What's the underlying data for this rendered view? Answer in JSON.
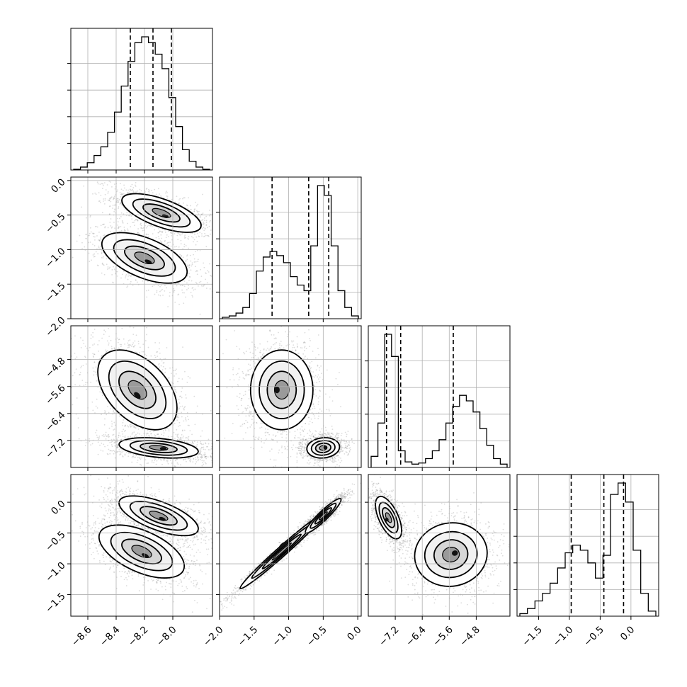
{
  "chart_data": {
    "type": "corner",
    "title": "",
    "dimensions": [
      {
        "range": [
          -8.72,
          -7.72
        ],
        "ticks": [
          -8.6,
          -8.4,
          -8.2,
          -8.0
        ],
        "tick_labels": [
          "−8.6",
          "−8.4",
          "−8.2",
          "−8.0"
        ],
        "quantiles": [
          -8.3,
          -8.14,
          -8.01
        ]
      },
      {
        "range": [
          -2.0,
          0.05
        ],
        "ticks": [
          -2.0,
          -1.5,
          -1.0,
          -0.5,
          0.0
        ],
        "tick_labels": [
          "−2.0",
          "−1.5",
          "−1.0",
          "−0.5",
          "0.0"
        ],
        "quantiles": [
          -1.24,
          -0.71,
          -0.42
        ]
      },
      {
        "range": [
          -8.0,
          -3.8
        ],
        "ticks": [
          -7.2,
          -6.4,
          -5.6,
          -4.8
        ],
        "tick_labels": [
          "−7.2",
          "−6.4",
          "−5.6",
          "−4.8"
        ],
        "quantiles": [
          -7.46,
          -7.04,
          -5.48
        ]
      },
      {
        "range": [
          -1.85,
          0.45
        ],
        "ticks": [
          -1.5,
          -1.0,
          -0.5,
          0.0
        ],
        "tick_labels": [
          "−1.5",
          "−1.0",
          "−0.5",
          "0.0"
        ],
        "quantiles": [
          -0.97,
          -0.44,
          -0.12
        ]
      }
    ],
    "histograms": [
      {
        "dim": 0,
        "counts": [
          0.5,
          2,
          5,
          10,
          16,
          26,
          40,
          58,
          75,
          88,
          92,
          88,
          80,
          70,
          50,
          30,
          14,
          6,
          2,
          0.5
        ]
      },
      {
        "dim": 1,
        "counts": [
          1,
          2,
          4,
          8,
          18,
          34,
          44,
          48,
          45,
          40,
          30,
          24,
          20,
          52,
          95,
          88,
          52,
          20,
          8,
          2
        ]
      },
      {
        "dim": 2,
        "counts": [
          10,
          40,
          120,
          100,
          15,
          5,
          3,
          4,
          8,
          15,
          25,
          40,
          55,
          65,
          60,
          50,
          35,
          20,
          8,
          3
        ]
      },
      {
        "dim": 3,
        "counts": [
          2,
          6,
          12,
          18,
          26,
          38,
          50,
          56,
          52,
          42,
          30,
          48,
          96,
          105,
          90,
          52,
          18,
          4
        ]
      }
    ],
    "pairs": [
      {
        "x": 0,
        "y": 1,
        "modes": [
          {
            "cx": -8.08,
            "cy": -0.47,
            "sx": 0.13,
            "sy": 0.13,
            "rho": -0.65,
            "w": 0.5
          },
          {
            "cx": -8.2,
            "cy": -1.12,
            "sx": 0.14,
            "sy": 0.17,
            "rho": -0.55,
            "w": 0.5
          }
        ]
      },
      {
        "x": 0,
        "y": 2,
        "modes": [
          {
            "cx": -8.25,
            "cy": -5.7,
            "sx": 0.13,
            "sy": 0.55,
            "rho": -0.45,
            "w": 0.45
          },
          {
            "cx": -8.1,
            "cy": -7.42,
            "sx": 0.13,
            "sy": 0.14,
            "rho": -0.35,
            "w": 0.55
          }
        ]
      },
      {
        "x": 0,
        "y": 3,
        "modes": [
          {
            "cx": -8.1,
            "cy": -0.22,
            "sx": 0.13,
            "sy": 0.15,
            "rho": -0.65,
            "w": 0.5
          },
          {
            "cx": -8.22,
            "cy": -0.8,
            "sx": 0.14,
            "sy": 0.2,
            "rho": -0.55,
            "w": 0.5
          }
        ]
      },
      {
        "x": 1,
        "y": 2,
        "modes": [
          {
            "cx": -1.1,
            "cy": -5.7,
            "sx": 0.21,
            "sy": 0.55,
            "rho": 0.0,
            "w": 0.5
          },
          {
            "cx": -0.5,
            "cy": -7.42,
            "sx": 0.11,
            "sy": 0.14,
            "rho": 0.1,
            "w": 0.5
          }
        ]
      },
      {
        "x": 1,
        "y": 3,
        "modes": [
          {
            "cx": -1.1,
            "cy": -0.8,
            "sx": 0.28,
            "sy": 0.28,
            "rho": 0.985,
            "w": 0.5
          },
          {
            "cx": -0.5,
            "cy": -0.22,
            "sx": 0.12,
            "sy": 0.13,
            "rho": 0.93,
            "w": 0.5
          }
        ]
      },
      {
        "x": 2,
        "y": 3,
        "modes": [
          {
            "cx": -7.4,
            "cy": -0.25,
            "sx": 0.18,
            "sy": 0.16,
            "rho": -0.6,
            "w": 0.5
          },
          {
            "cx": -5.55,
            "cy": -0.85,
            "sx": 0.5,
            "sy": 0.24,
            "rho": 0.05,
            "w": 0.5
          }
        ]
      }
    ],
    "grid": true,
    "colors": {
      "line": "#000000",
      "points": "#808080",
      "grid": "#b0b0b0",
      "frame": "#000000"
    }
  }
}
